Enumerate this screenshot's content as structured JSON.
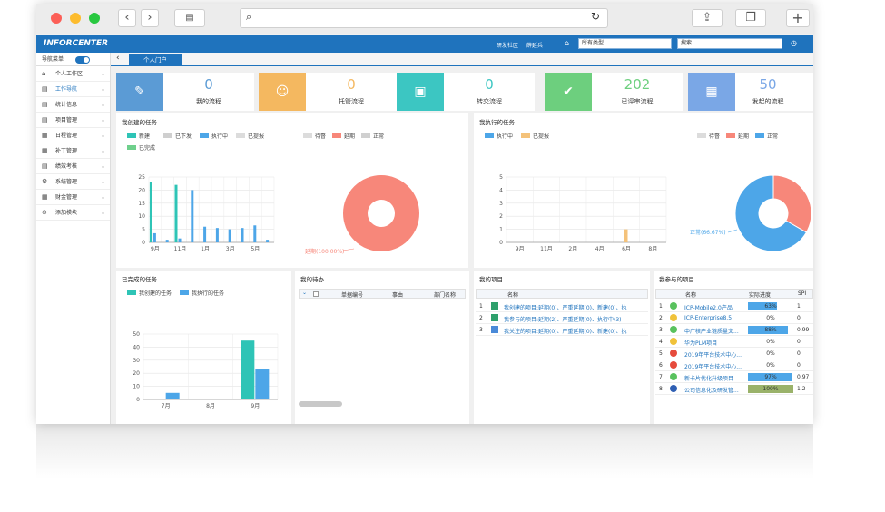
{
  "app": {
    "logo": "INFORCENTER",
    "links": [
      "研发社区",
      "薛延兵"
    ],
    "type_select": "所有类型",
    "search_select": "搜索"
  },
  "nav": {
    "label": "导航菜单",
    "items": [
      "个人工作区",
      "工作导航",
      "统计信息",
      "项目管理",
      "日程管理",
      "补丁管理",
      "绩效考核",
      "系统管理",
      "财金管理",
      "添加模块"
    ]
  },
  "tabs": [
    "个人门户"
  ],
  "stats": [
    {
      "value": "0",
      "label": "我的流程",
      "color": "#5b9bd5"
    },
    {
      "value": "0",
      "label": "托管流程",
      "color": "#f4b860"
    },
    {
      "value": "0",
      "label": "转交流程",
      "color": "#3cc6c2"
    },
    {
      "value": "202",
      "label": "已评审流程",
      "color": "#6dcf7e"
    },
    {
      "value": "50",
      "label": "发起的流程",
      "color": "#7aa7e6"
    }
  ],
  "created_tasks": {
    "title": "我创建的任务",
    "legend_bar": [
      "新建",
      "已下发",
      "执行中",
      "已提报",
      "已完成"
    ],
    "legend_pie": [
      "待督",
      "延期",
      "正常"
    ],
    "chart_data": {
      "type": "bar",
      "categories": [
        "9月",
        "",
        "11月",
        "",
        "1月",
        "",
        "3月",
        "",
        "5月",
        ""
      ],
      "yticks": [
        "0",
        "5",
        "10",
        "15",
        "20",
        "25"
      ],
      "ylim": [
        0,
        25
      ],
      "series": [
        {
          "name": "新建",
          "color": "#2ec4b6",
          "values": [
            23,
            0,
            22,
            0,
            0,
            0,
            0,
            0,
            0,
            0
          ]
        },
        {
          "name": "执行中",
          "color": "#4da6e8",
          "values": [
            3.5,
            1,
            1.5,
            20,
            6,
            5.5,
            5,
            5.5,
            6.5,
            1
          ]
        },
        {
          "name": "已完成",
          "color": "#6fd08c",
          "values": [
            0,
            0,
            0,
            0,
            0,
            0,
            0,
            0,
            0,
            0
          ]
        }
      ],
      "pie": {
        "label": "延期(100.00%)",
        "values": [
          100
        ],
        "colors": [
          "#f7877a"
        ]
      }
    }
  },
  "exec_tasks": {
    "title": "我执行的任务",
    "legend_bar": [
      "执行中",
      "已提报"
    ],
    "legend_pie": [
      "待督",
      "延期",
      "正常"
    ],
    "chart_data": {
      "type": "bar",
      "categories": [
        "9月",
        "11月",
        "2月",
        "4月",
        "6月",
        "8月"
      ],
      "yticks": [
        "0",
        "1",
        "2",
        "3",
        "4",
        "5"
      ],
      "ylim": [
        0,
        5
      ],
      "series": [
        {
          "name": "已提报",
          "color": "#f4c27a",
          "values": [
            0,
            0,
            0,
            0,
            1,
            0
          ]
        }
      ],
      "pie": {
        "labels": [
          "延期(33.33%)",
          "正常(66.67%)"
        ],
        "values": [
          33.33,
          66.67
        ],
        "colors": [
          "#f7877a",
          "#4da6e8"
        ]
      }
    }
  },
  "done_tasks": {
    "title": "已完成的任务",
    "legend": [
      "我创建的任务",
      "我执行的任务"
    ],
    "chart_data": {
      "type": "bar",
      "categories": [
        "7月",
        "8月",
        "9月"
      ],
      "yticks": [
        "0",
        "10",
        "20",
        "30",
        "40",
        "50"
      ],
      "ylim": [
        0,
        50
      ],
      "series": [
        {
          "name": "我创建的任务",
          "color": "#2ec4b6",
          "values": [
            0,
            0,
            45
          ]
        },
        {
          "name": "我执行的任务",
          "color": "#4da6e8",
          "values": [
            5,
            0,
            23
          ]
        }
      ]
    }
  },
  "todo": {
    "title": "我的待办",
    "cols": [
      "单据编号",
      "事由",
      "部门名称"
    ]
  },
  "projects": {
    "title": "我的项目",
    "col": "名称",
    "rows": [
      "我创建的项目:延期(0)、严重延期(0)、新建(0)、执",
      "我参与的项目:延期(2)、严重延期(0)、执行中(3)",
      "我关注的项目:延期(0)、严重延期(0)、新建(0)、执"
    ]
  },
  "joined": {
    "title": "我参与的项目",
    "cols": [
      "名称",
      "实际进度",
      "SPI"
    ],
    "rows": [
      {
        "n": "1",
        "c": "#59c25e",
        "name": "ICP-Mobile2.0产品",
        "p": "63%",
        "spi": "1",
        "bar": 0.63
      },
      {
        "n": "2",
        "c": "#f0c23a",
        "name": "ICP-Enterprise8.5",
        "p": "0%",
        "spi": "0",
        "bar": 0
      },
      {
        "n": "3",
        "c": "#59c25e",
        "name": "中广核产业链质量文...",
        "p": "88%",
        "spi": "0.99",
        "bar": 0.88
      },
      {
        "n": "4",
        "c": "#f0c23a",
        "name": "华为PLM项目",
        "p": "0%",
        "spi": "0",
        "bar": 0
      },
      {
        "n": "5",
        "c": "#e64b3c",
        "name": "2019年平台技术中心...",
        "p": "0%",
        "spi": "0",
        "bar": 0
      },
      {
        "n": "6",
        "c": "#e64b3c",
        "name": "2019年平台技术中心...",
        "p": "0%",
        "spi": "0",
        "bar": 0
      },
      {
        "n": "7",
        "c": "#59c25e",
        "name": "新卡片优化升级项目",
        "p": "97%",
        "spi": "0.97",
        "bar": 0.97
      },
      {
        "n": "8",
        "c": "#2f5fb3",
        "name": "公司信息化及研发管...",
        "p": "100%",
        "spi": "1.2",
        "bar": 1
      }
    ]
  }
}
